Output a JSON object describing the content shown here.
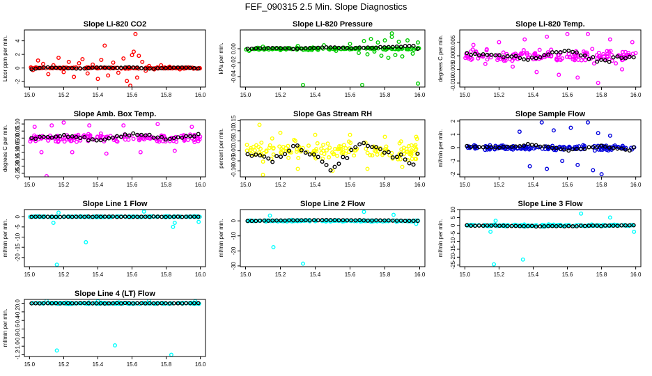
{
  "figure_title": "FEF_090315  2.5 Min. Slope Diagnostics",
  "overlay_color": "#000000",
  "chart_data": [
    {
      "type": "scatter",
      "title": "Slope Li-820 CO2",
      "ylabel": "Licor ppm per min.",
      "color": "#ff0000",
      "xlim": [
        14.97,
        16.03
      ],
      "ylim": [
        -2.8,
        5.6
      ],
      "xticks": [
        15.0,
        15.2,
        15.4,
        15.6,
        15.8,
        16.0
      ],
      "xtick_labels": [
        "15.0",
        "15.2",
        "15.4",
        "15.6",
        "15.8",
        "16.0"
      ],
      "yticks": [
        -2,
        0,
        2,
        4
      ],
      "ytick_labels": [
        "-2",
        "0",
        "2",
        "4"
      ],
      "x_range": [
        15.0,
        16.0
      ],
      "overlay_spread": 0.12,
      "series_points": [
        [
          15.02,
          -0.3
        ],
        [
          15.05,
          1.1
        ],
        [
          15.08,
          0.6
        ],
        [
          15.11,
          -0.9
        ],
        [
          15.14,
          0.4
        ],
        [
          15.17,
          1.5
        ],
        [
          15.2,
          -0.6
        ],
        [
          15.23,
          0.9
        ],
        [
          15.26,
          -1.3
        ],
        [
          15.29,
          0.7
        ],
        [
          15.31,
          1.3
        ],
        [
          15.34,
          -0.8
        ],
        [
          15.37,
          0.5
        ],
        [
          15.4,
          -1.6
        ],
        [
          15.42,
          1.2
        ],
        [
          15.44,
          3.3
        ],
        [
          15.46,
          -1.1
        ],
        [
          15.49,
          0.8
        ],
        [
          15.52,
          -0.7
        ],
        [
          15.55,
          1.4
        ],
        [
          15.57,
          -1.9
        ],
        [
          15.59,
          -2.6
        ],
        [
          15.6,
          1.9
        ],
        [
          15.61,
          2.4
        ],
        [
          15.62,
          5.0
        ],
        [
          15.63,
          -1.4
        ],
        [
          15.64,
          1.8
        ],
        [
          15.66,
          0.9
        ],
        [
          15.68,
          -0.4
        ],
        [
          15.7,
          0.3
        ],
        [
          15.73,
          -0.2
        ],
        [
          15.77,
          0.4
        ],
        [
          15.82,
          0.2
        ],
        [
          15.88,
          -0.2
        ],
        [
          15.93,
          0.1
        ],
        [
          15.98,
          -0.1
        ]
      ],
      "overlay_points": [
        [
          15.0,
          -0.2
        ],
        [
          15.1,
          0.1
        ],
        [
          15.2,
          0.0
        ],
        [
          15.3,
          -0.1
        ],
        [
          15.4,
          0.1
        ],
        [
          15.5,
          0.0
        ],
        [
          15.6,
          0.1
        ],
        [
          15.7,
          -0.1
        ],
        [
          15.8,
          0.0
        ],
        [
          15.9,
          0.1
        ],
        [
          16.0,
          -0.1
        ]
      ]
    },
    {
      "type": "scatter",
      "title": "Slope Li-820 Pressure",
      "ylabel": "kPa per min.",
      "color": "#00cc00",
      "xlim": [
        14.97,
        16.03
      ],
      "ylim": [
        -0.055,
        0.027
      ],
      "xticks": [
        15.0,
        15.2,
        15.4,
        15.6,
        15.8,
        16.0
      ],
      "xtick_labels": [
        "15.0",
        "15.2",
        "15.4",
        "15.6",
        "15.8",
        "16.0"
      ],
      "yticks": [
        -0.04,
        -0.02,
        0.0
      ],
      "ytick_labels": [
        "-0.04",
        "-0.02",
        "0.00"
      ],
      "x_range": [
        15.0,
        16.0
      ],
      "overlay_spread": 0.002,
      "series_points": [
        [
          15.02,
          -0.003
        ],
        [
          15.1,
          0.003
        ],
        [
          15.2,
          -0.002
        ],
        [
          15.3,
          0.004
        ],
        [
          15.38,
          -0.002
        ],
        [
          15.45,
          0.005
        ],
        [
          15.52,
          -0.003
        ],
        [
          15.6,
          0.007
        ],
        [
          15.65,
          -0.006
        ],
        [
          15.68,
          0.011
        ],
        [
          15.7,
          -0.008
        ],
        [
          15.72,
          0.014
        ],
        [
          15.74,
          -0.004
        ],
        [
          15.76,
          0.009
        ],
        [
          15.78,
          -0.01
        ],
        [
          15.8,
          0.012
        ],
        [
          15.82,
          -0.013
        ],
        [
          15.84,
          0.017
        ],
        [
          15.86,
          -0.009
        ],
        [
          15.88,
          0.01
        ],
        [
          15.9,
          -0.011
        ],
        [
          15.93,
          0.012
        ],
        [
          15.96,
          -0.007
        ],
        [
          15.99,
          0.009
        ]
      ],
      "outliers": [
        [
          15.33,
          -0.052
        ],
        [
          15.67,
          -0.052
        ],
        [
          15.84,
          0.022
        ],
        [
          15.99,
          -0.05
        ]
      ],
      "overlay_points": [
        [
          15.0,
          0.0
        ],
        [
          15.15,
          0.001
        ],
        [
          15.3,
          0.0
        ],
        [
          15.45,
          0.002
        ],
        [
          15.6,
          0.001
        ],
        [
          15.75,
          0.002
        ],
        [
          15.9,
          0.003
        ],
        [
          15.98,
          0.005
        ]
      ]
    },
    {
      "type": "scatter",
      "title": "Slope Li-820 Temp.",
      "ylabel": "degrees C per min.",
      "color": "#ff00ff",
      "xlim": [
        14.97,
        16.03
      ],
      "ylim": [
        -0.0115,
        0.0095
      ],
      "xticks": [
        15.0,
        15.2,
        15.4,
        15.6,
        15.8,
        16.0
      ],
      "xtick_labels": [
        "15.0",
        "15.2",
        "15.4",
        "15.6",
        "15.8",
        "16.0"
      ],
      "yticks": [
        -0.01,
        -0.005,
        0.0,
        0.005
      ],
      "ytick_labels": [
        "-0.010",
        "-0.005",
        "0.000",
        "0.005"
      ],
      "x_range": [
        15.0,
        16.0
      ],
      "overlay_spread": 0.003,
      "series_points": [
        [
          15.05,
          0.004
        ],
        [
          15.12,
          -0.003
        ],
        [
          15.2,
          0.005
        ],
        [
          15.28,
          -0.004
        ],
        [
          15.35,
          0.006
        ],
        [
          15.42,
          -0.006
        ],
        [
          15.48,
          0.007
        ],
        [
          15.55,
          -0.007
        ],
        [
          15.6,
          0.008
        ],
        [
          15.66,
          -0.008
        ],
        [
          15.72,
          0.008
        ],
        [
          15.78,
          -0.01
        ],
        [
          15.85,
          0.006
        ],
        [
          15.92,
          -0.005
        ],
        [
          15.98,
          0.005
        ]
      ],
      "overlay_points": [
        [
          15.0,
          0.001
        ],
        [
          15.2,
          0.0
        ],
        [
          15.4,
          -0.001
        ],
        [
          15.6,
          0.002
        ],
        [
          15.8,
          -0.002
        ],
        [
          16.0,
          0.0
        ]
      ]
    },
    {
      "type": "scatter",
      "title": "Slope Amb. Box Temp.",
      "ylabel": "degrees C per min.",
      "color": "#ff00ff",
      "xlim": [
        14.97,
        16.03
      ],
      "ylim": [
        -0.275,
        0.13
      ],
      "xticks": [
        15.0,
        15.2,
        15.4,
        15.6,
        15.8,
        16.0
      ],
      "xtick_labels": [
        "15.0",
        "15.2",
        "15.4",
        "15.6",
        "15.8",
        "16.0"
      ],
      "yticks": [
        -0.25,
        -0.2,
        -0.15,
        -0.1,
        -0.05,
        0.0,
        0.05,
        0.1
      ],
      "ytick_labels": [
        "-0.25",
        "-0.20",
        "-0.15",
        "-0.10",
        "-0.05",
        "0.00",
        "0.05",
        "0.10"
      ],
      "x_range": [
        15.0,
        16.0
      ],
      "overlay_spread": 0.04,
      "series_points": [
        [
          15.03,
          0.08
        ],
        [
          15.07,
          -0.1
        ],
        [
          15.1,
          -0.27
        ],
        [
          15.13,
          0.09
        ],
        [
          15.2,
          0.11
        ],
        [
          15.25,
          -0.1
        ],
        [
          15.35,
          0.09
        ],
        [
          15.45,
          -0.11
        ],
        [
          15.55,
          0.09
        ],
        [
          15.65,
          -0.1
        ],
        [
          15.75,
          0.1
        ],
        [
          15.85,
          -0.09
        ],
        [
          15.95,
          0.08
        ]
      ],
      "overlay_points": [
        [
          15.0,
          0.0
        ],
        [
          15.2,
          0.02
        ],
        [
          15.4,
          -0.02
        ],
        [
          15.6,
          0.03
        ],
        [
          15.8,
          0.0
        ],
        [
          16.0,
          0.02
        ]
      ]
    },
    {
      "type": "scatter",
      "title": "Slope Gas Stream RH",
      "ylabel": "percent per min.",
      "color": "#ffff00",
      "xlim": [
        14.97,
        16.03
      ],
      "ylim": [
        -0.13,
        0.155
      ],
      "xticks": [
        15.0,
        15.2,
        15.4,
        15.6,
        15.8,
        16.0
      ],
      "xtick_labels": [
        "15.0",
        "15.2",
        "15.4",
        "15.6",
        "15.8",
        "16.0"
      ],
      "yticks": [
        -0.1,
        -0.05,
        0.0,
        0.05,
        0.1,
        0.15
      ],
      "ytick_labels": [
        "-0.10",
        "-0.05",
        "0.00",
        "0.05",
        "0.10",
        "0.15"
      ],
      "x_range": [
        15.0,
        16.0
      ],
      "overlay_spread": 0.06,
      "series_points": [
        [
          15.08,
          0.13
        ],
        [
          15.1,
          -0.12
        ],
        [
          15.2,
          0.09
        ],
        [
          15.3,
          -0.09
        ],
        [
          15.4,
          0.08
        ],
        [
          15.5,
          -0.1
        ],
        [
          15.6,
          0.08
        ],
        [
          15.7,
          -0.09
        ],
        [
          15.8,
          0.07
        ],
        [
          15.9,
          -0.08
        ],
        [
          15.98,
          0.07
        ]
      ],
      "overlay_points": [
        [
          15.0,
          0.0
        ],
        [
          15.15,
          -0.05
        ],
        [
          15.3,
          0.03
        ],
        [
          15.5,
          -0.09
        ],
        [
          15.65,
          0.05
        ],
        [
          15.8,
          0.0
        ],
        [
          15.98,
          -0.07
        ]
      ]
    },
    {
      "type": "scatter",
      "title": "Slope Sample Flow",
      "ylabel": "ml/min per min.",
      "color": "#0000dd",
      "xlim": [
        14.97,
        16.03
      ],
      "ylim": [
        -2.2,
        2.1
      ],
      "xticks": [
        15.0,
        15.2,
        15.4,
        15.6,
        15.8,
        16.0
      ],
      "xtick_labels": [
        "15.0",
        "15.2",
        "15.4",
        "15.6",
        "15.8",
        "16.0"
      ],
      "yticks": [
        -2,
        -1,
        0,
        1,
        2
      ],
      "ytick_labels": [
        "-2",
        "-1",
        "0",
        "1",
        "2"
      ],
      "x_range": [
        15.0,
        16.0
      ],
      "overlay_spread": 0.25,
      "series_points": [
        [
          15.32,
          1.2
        ],
        [
          15.38,
          -1.4
        ],
        [
          15.45,
          1.9
        ],
        [
          15.48,
          -1.6
        ],
        [
          15.52,
          1.3
        ],
        [
          15.57,
          -1.0
        ],
        [
          15.62,
          1.5
        ],
        [
          15.66,
          -1.3
        ],
        [
          15.72,
          1.9
        ],
        [
          15.75,
          -1.7
        ],
        [
          15.78,
          1.1
        ],
        [
          15.8,
          -2.0
        ],
        [
          15.85,
          0.9
        ]
      ],
      "overlay_points": [
        [
          15.0,
          0.1
        ],
        [
          15.2,
          0.0
        ],
        [
          15.4,
          0.2
        ],
        [
          15.6,
          -0.2
        ],
        [
          15.8,
          0.1
        ],
        [
          15.98,
          -0.2
        ]
      ]
    },
    {
      "type": "scatter",
      "title": "Slope Line 1 Flow",
      "ylabel": "ml/min per min.",
      "color": "#00ffff",
      "xlim": [
        14.97,
        16.03
      ],
      "ylim": [
        -24.5,
        3.5
      ],
      "xticks": [
        15.0,
        15.2,
        15.4,
        15.6,
        15.8,
        16.0
      ],
      "xtick_labels": [
        "15.0",
        "15.2",
        "15.4",
        "15.6",
        "15.8",
        "16.0"
      ],
      "yticks": [
        -20,
        -15,
        -10,
        -5,
        0
      ],
      "ytick_labels": [
        "-20",
        "-15",
        "-10",
        "-5",
        "0"
      ],
      "x_range": [
        15.0,
        16.0
      ],
      "overlay_spread": 0.3,
      "series_points": [
        [
          15.14,
          -3
        ],
        [
          15.16,
          -23.5
        ],
        [
          15.17,
          2.0
        ],
        [
          15.33,
          -12.5
        ],
        [
          15.67,
          2.5
        ],
        [
          15.84,
          -5.0
        ],
        [
          15.85,
          -3.0
        ],
        [
          15.99,
          -2.5
        ]
      ],
      "overlay_points": [
        [
          15.0,
          0.0
        ],
        [
          15.5,
          0.0
        ],
        [
          16.0,
          0.0
        ]
      ]
    },
    {
      "type": "scatter",
      "title": "Slope Line 2 Flow",
      "ylabel": "ml/min per min.",
      "color": "#00ffff",
      "xlim": [
        14.97,
        16.03
      ],
      "ylim": [
        -30.5,
        7.5
      ],
      "xticks": [
        15.0,
        15.2,
        15.4,
        15.6,
        15.8,
        16.0
      ],
      "xtick_labels": [
        "15.0",
        "15.2",
        "15.4",
        "15.6",
        "15.8",
        "16.0"
      ],
      "yticks": [
        -30,
        -20,
        -10,
        0
      ],
      "ytick_labels": [
        "-30",
        "-20",
        "-10",
        "0"
      ],
      "x_range": [
        15.0,
        16.0
      ],
      "overlay_spread": 0.6,
      "series_points": [
        [
          15.14,
          3.5
        ],
        [
          15.16,
          -17.5
        ],
        [
          15.33,
          -28.5
        ],
        [
          15.68,
          6.0
        ],
        [
          15.85,
          4.0
        ],
        [
          15.98,
          -2.0
        ]
      ],
      "overlay_points": [
        [
          15.0,
          0.0
        ],
        [
          15.5,
          0.5
        ],
        [
          16.0,
          0.0
        ]
      ]
    },
    {
      "type": "scatter",
      "title": "Slope Line 3 Flow",
      "ylabel": "ml/min per min.",
      "color": "#00ffff",
      "xlim": [
        14.97,
        16.03
      ],
      "ylim": [
        -26.0,
        10.0
      ],
      "xticks": [
        15.0,
        15.2,
        15.4,
        15.6,
        15.8,
        16.0
      ],
      "xtick_labels": [
        "15.0",
        "15.2",
        "15.4",
        "15.6",
        "15.8",
        "16.0"
      ],
      "yticks": [
        -25,
        -20,
        -15,
        -10,
        -5,
        0,
        5,
        10
      ],
      "ytick_labels": [
        "-25",
        "-20",
        "-15",
        "-10",
        "-5",
        "0",
        "5",
        "10"
      ],
      "x_range": [
        15.0,
        16.0
      ],
      "overlay_spread": 0.8,
      "series_points": [
        [
          15.15,
          -4.0
        ],
        [
          15.17,
          -24.5
        ],
        [
          15.18,
          3.0
        ],
        [
          15.34,
          -21.5
        ],
        [
          15.68,
          7.5
        ],
        [
          15.85,
          5.0
        ],
        [
          15.99,
          -4.0
        ]
      ],
      "overlay_points": [
        [
          15.0,
          0.0
        ],
        [
          15.5,
          -0.5
        ],
        [
          16.0,
          0.0
        ]
      ]
    },
    {
      "type": "scatter",
      "title": "Slope Line 4 (LT) Flow",
      "ylabel": "ml/min per min.",
      "color": "#00ffff",
      "xlim": [
        14.97,
        16.03
      ],
      "ylim": [
        -1.24,
        0.09
      ],
      "xticks": [
        15.0,
        15.2,
        15.4,
        15.6,
        15.8,
        16.0
      ],
      "xtick_labels": [
        "15.0",
        "15.2",
        "15.4",
        "15.6",
        "15.8",
        "16.0"
      ],
      "yticks": [
        -1.2,
        -1.0,
        -0.8,
        -0.6,
        -0.4,
        -0.2,
        0.0
      ],
      "ytick_labels": [
        "-1.2",
        "-1.0",
        "-0.8",
        "-0.6",
        "-0.4",
        "-0.2",
        "0.0"
      ],
      "x_range": [
        15.0,
        16.0
      ],
      "overlay_spread": 0.02,
      "series_points": [
        [
          15.16,
          -1.1
        ],
        [
          15.5,
          -0.98
        ],
        [
          15.83,
          -1.2
        ],
        [
          15.1,
          0.06
        ],
        [
          15.4,
          0.05
        ],
        [
          15.7,
          0.06
        ],
        [
          15.97,
          0.05
        ]
      ],
      "overlay_points": [
        [
          15.0,
          0.0
        ],
        [
          15.5,
          0.0
        ],
        [
          16.0,
          0.0
        ]
      ]
    }
  ]
}
